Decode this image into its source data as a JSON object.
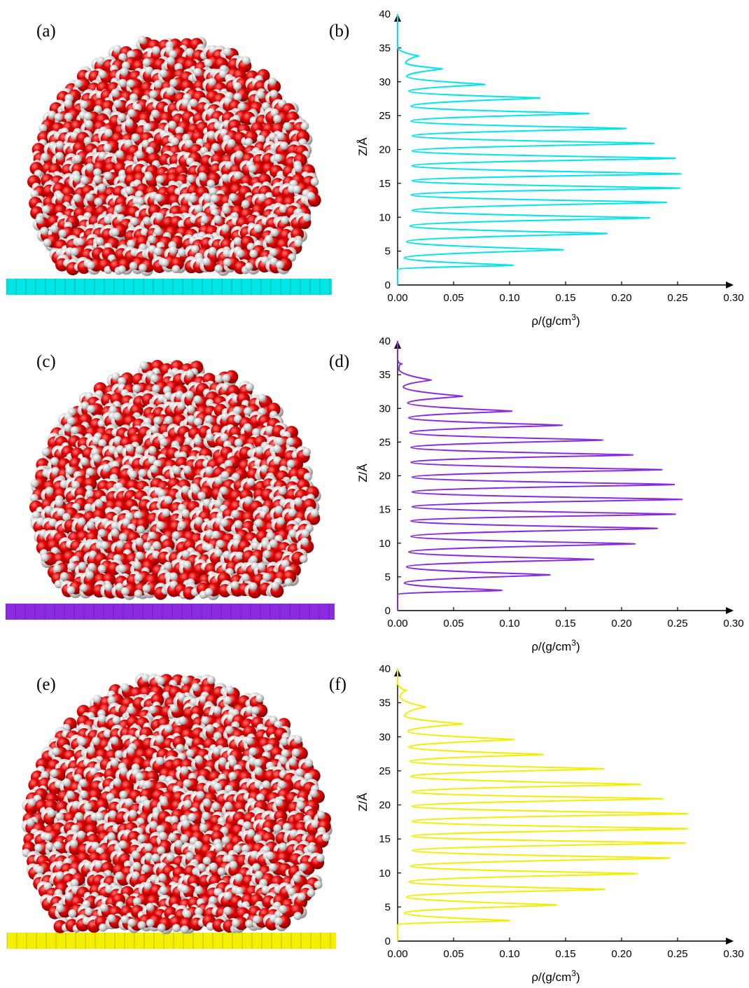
{
  "panels": [
    {
      "label": "(a)",
      "substrate_color": "#00e6e6"
    },
    {
      "label": "(c)",
      "substrate_color": "#8a2be2"
    },
    {
      "label": "(e)",
      "substrate_color": "#f5ef00"
    }
  ],
  "molecule_colors": {
    "oxygen": "#e00000",
    "hydrogen": "#dcdcdc"
  },
  "chart_data": [
    {
      "type": "line",
      "panel_label": "(b)",
      "color": "#00e5ee",
      "xlabel": "ρ/(g/cm3)",
      "ylabel": "Z/Å",
      "xlim": [
        0,
        0.3
      ],
      "ylim": [
        0,
        40
      ],
      "xticks": [
        "0.00",
        "0.05",
        "0.10",
        "0.15",
        "0.20",
        "0.25",
        "0.30"
      ],
      "yticks": [
        "0",
        "5",
        "10",
        "15",
        "20",
        "25",
        "30",
        "35",
        "40"
      ],
      "peaks": [
        {
          "z": 2.9,
          "rho": 0.103
        },
        {
          "z": 5.2,
          "rho": 0.148
        },
        {
          "z": 7.6,
          "rho": 0.187
        },
        {
          "z": 9.9,
          "rho": 0.225
        },
        {
          "z": 12.2,
          "rho": 0.24
        },
        {
          "z": 14.3,
          "rho": 0.252
        },
        {
          "z": 16.4,
          "rho": 0.253
        },
        {
          "z": 18.7,
          "rho": 0.248
        },
        {
          "z": 20.9,
          "rho": 0.229
        },
        {
          "z": 23.1,
          "rho": 0.204
        },
        {
          "z": 25.3,
          "rho": 0.171
        },
        {
          "z": 27.6,
          "rho": 0.127
        },
        {
          "z": 29.6,
          "rho": 0.078
        },
        {
          "z": 31.9,
          "rho": 0.04
        },
        {
          "z": 33.8,
          "rho": 0.019
        }
      ],
      "troughs": [
        {
          "z": 4.0,
          "rho": 0.006
        },
        {
          "z": 6.4,
          "rho": 0.008
        },
        {
          "z": 8.7,
          "rho": 0.011
        },
        {
          "z": 11.0,
          "rho": 0.013
        },
        {
          "z": 13.3,
          "rho": 0.012
        },
        {
          "z": 15.4,
          "rho": 0.013
        },
        {
          "z": 17.6,
          "rho": 0.013
        },
        {
          "z": 19.8,
          "rho": 0.013
        },
        {
          "z": 22.0,
          "rho": 0.013
        },
        {
          "z": 24.2,
          "rho": 0.012
        },
        {
          "z": 26.4,
          "rho": 0.012
        },
        {
          "z": 28.6,
          "rho": 0.01
        },
        {
          "z": 30.8,
          "rho": 0.008
        },
        {
          "z": 32.8,
          "rho": 0.007
        }
      ],
      "z_start": 2.3,
      "z_end": 35.0
    },
    {
      "type": "line",
      "panel_label": "(d)",
      "color": "#8a2be2",
      "xlabel": "ρ/(g/cm3)",
      "ylabel": "Z/Å",
      "xlim": [
        0,
        0.3
      ],
      "ylim": [
        0,
        40
      ],
      "xticks": [
        "0.00",
        "0.05",
        "0.10",
        "0.15",
        "0.20",
        "0.25",
        "0.30"
      ],
      "yticks": [
        "0",
        "5",
        "10",
        "15",
        "20",
        "25",
        "30",
        "35",
        "40"
      ],
      "peaks": [
        {
          "z": 3.0,
          "rho": 0.093
        },
        {
          "z": 5.3,
          "rho": 0.136
        },
        {
          "z": 7.6,
          "rho": 0.175
        },
        {
          "z": 9.9,
          "rho": 0.212
        },
        {
          "z": 12.2,
          "rho": 0.232
        },
        {
          "z": 14.3,
          "rho": 0.248
        },
        {
          "z": 16.5,
          "rho": 0.254
        },
        {
          "z": 18.7,
          "rho": 0.247
        },
        {
          "z": 20.9,
          "rho": 0.236
        },
        {
          "z": 23.1,
          "rho": 0.21
        },
        {
          "z": 25.3,
          "rho": 0.183
        },
        {
          "z": 27.5,
          "rho": 0.147
        },
        {
          "z": 29.6,
          "rho": 0.102
        },
        {
          "z": 31.8,
          "rho": 0.058
        },
        {
          "z": 34.2,
          "rho": 0.03
        },
        {
          "z": 36.6,
          "rho": 0.004
        }
      ],
      "troughs": [
        {
          "z": 4.1,
          "rho": 0.006
        },
        {
          "z": 6.5,
          "rho": 0.008
        },
        {
          "z": 8.7,
          "rho": 0.01
        },
        {
          "z": 11.0,
          "rho": 0.012
        },
        {
          "z": 13.3,
          "rho": 0.012
        },
        {
          "z": 15.4,
          "rho": 0.013
        },
        {
          "z": 17.6,
          "rho": 0.013
        },
        {
          "z": 19.8,
          "rho": 0.013
        },
        {
          "z": 22.0,
          "rho": 0.012
        },
        {
          "z": 24.2,
          "rho": 0.012
        },
        {
          "z": 26.4,
          "rho": 0.011
        },
        {
          "z": 28.6,
          "rho": 0.01
        },
        {
          "z": 30.8,
          "rho": 0.009
        },
        {
          "z": 33.2,
          "rho": 0.005
        },
        {
          "z": 35.8,
          "rho": 0.001
        }
      ],
      "z_start": 2.4,
      "z_end": 37.2
    },
    {
      "type": "line",
      "panel_label": "(f)",
      "color": "#f2ee00",
      "xlabel": "ρ/(g/cm3)",
      "ylabel": "Z/Å",
      "xlim": [
        0,
        0.3
      ],
      "ylim": [
        0,
        40
      ],
      "xticks": [
        "0.00",
        "0.05",
        "0.10",
        "0.15",
        "0.20",
        "0.25",
        "0.30"
      ],
      "yticks": [
        "0",
        "5",
        "10",
        "15",
        "20",
        "25",
        "30",
        "35",
        "40"
      ],
      "peaks": [
        {
          "z": 3.0,
          "rho": 0.1
        },
        {
          "z": 5.3,
          "rho": 0.142
        },
        {
          "z": 7.6,
          "rho": 0.185
        },
        {
          "z": 9.9,
          "rho": 0.214
        },
        {
          "z": 12.2,
          "rho": 0.243
        },
        {
          "z": 14.4,
          "rho": 0.257
        },
        {
          "z": 16.5,
          "rho": 0.259
        },
        {
          "z": 18.7,
          "rho": 0.259
        },
        {
          "z": 20.9,
          "rho": 0.237
        },
        {
          "z": 23.0,
          "rho": 0.217
        },
        {
          "z": 25.3,
          "rho": 0.184
        },
        {
          "z": 27.4,
          "rho": 0.13
        },
        {
          "z": 29.6,
          "rho": 0.104
        },
        {
          "z": 31.9,
          "rho": 0.058
        },
        {
          "z": 34.4,
          "rho": 0.025
        },
        {
          "z": 36.8,
          "rho": 0.008
        }
      ],
      "troughs": [
        {
          "z": 4.1,
          "rho": 0.006
        },
        {
          "z": 6.5,
          "rho": 0.008
        },
        {
          "z": 8.7,
          "rho": 0.01
        },
        {
          "z": 11.0,
          "rho": 0.012
        },
        {
          "z": 13.3,
          "rho": 0.013
        },
        {
          "z": 15.4,
          "rho": 0.013
        },
        {
          "z": 17.6,
          "rho": 0.013
        },
        {
          "z": 19.8,
          "rho": 0.013
        },
        {
          "z": 21.9,
          "rho": 0.013
        },
        {
          "z": 24.2,
          "rho": 0.012
        },
        {
          "z": 26.4,
          "rho": 0.011
        },
        {
          "z": 28.5,
          "rho": 0.01
        },
        {
          "z": 30.8,
          "rho": 0.009
        },
        {
          "z": 33.1,
          "rho": 0.006
        },
        {
          "z": 35.9,
          "rho": 0.002
        }
      ],
      "z_start": 2.4,
      "z_end": 37.8
    }
  ]
}
